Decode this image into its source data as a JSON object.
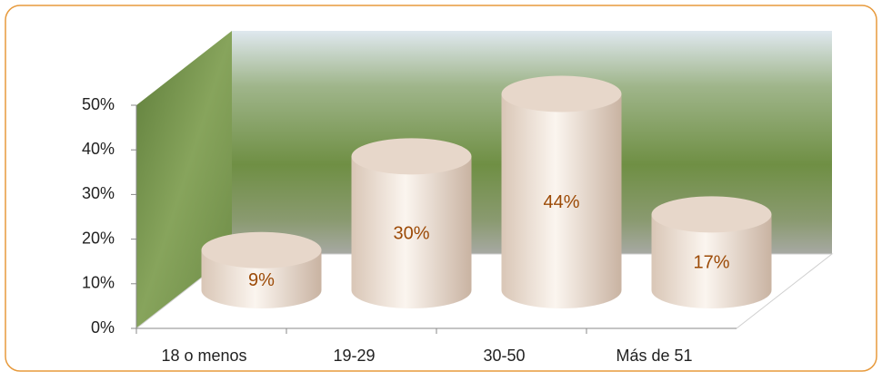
{
  "chart_data": {
    "type": "cylinder",
    "categories": [
      "18 o menos",
      "19-29",
      "30-50",
      "Más de 51"
    ],
    "values": [
      9,
      30,
      44,
      17
    ],
    "value_labels": [
      "9%",
      "30%",
      "44%",
      "17%"
    ],
    "color": "#f2e4d8",
    "label_color": "#9c4a06",
    "ylim": [
      0,
      50
    ],
    "yticks": [
      {
        "value": 0,
        "label": "0%"
      },
      {
        "value": 10,
        "label": "10%"
      },
      {
        "value": 20,
        "label": "20%"
      },
      {
        "value": 30,
        "label": "30%"
      },
      {
        "value": 40,
        "label": "40%"
      },
      {
        "value": 50,
        "label": "50%"
      }
    ],
    "grid": false
  }
}
